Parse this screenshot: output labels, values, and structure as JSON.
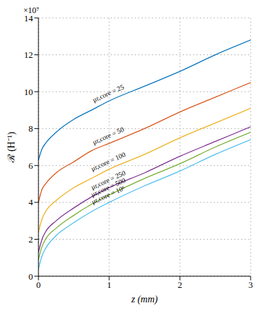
{
  "chart_data": {
    "type": "line",
    "x_label": "z (mm)",
    "y_label": "ℛ (H⁻¹)",
    "annotations": [
      "×10⁷"
    ],
    "x": [
      0,
      0.05,
      0.1,
      0.25,
      0.5,
      0.75,
      1,
      1.5,
      2,
      2.5,
      3
    ],
    "series": [
      {
        "name": "μr,core = 25",
        "color": "#0072BD",
        "values": [
          6.3,
          6.9,
          7.2,
          7.8,
          8.5,
          9.0,
          9.5,
          10.3,
          11.1,
          12.0,
          12.8
        ]
      },
      {
        "name": "μr,core = 50",
        "color": "#D95319",
        "values": [
          4.0,
          4.7,
          5.0,
          5.6,
          6.2,
          6.8,
          7.2,
          8.0,
          8.9,
          9.7,
          10.5
        ]
      },
      {
        "name": "μr,core = 100",
        "color": "#EDB120",
        "values": [
          2.4,
          3.1,
          3.5,
          4.1,
          4.8,
          5.3,
          5.8,
          6.6,
          7.5,
          8.3,
          9.1
        ]
      },
      {
        "name": "μr,core = 250",
        "color": "#7E2F8E",
        "values": [
          1.3,
          2.0,
          2.4,
          3.0,
          3.7,
          4.3,
          4.8,
          5.6,
          6.5,
          7.3,
          8.1
        ]
      },
      {
        "name": "μr,core = 500",
        "color": "#77AC30",
        "values": [
          0.9,
          1.6,
          2.0,
          2.6,
          3.3,
          3.9,
          4.4,
          5.3,
          6.1,
          7.0,
          7.8
        ]
      },
      {
        "name": "μr,core = 10⁶",
        "color": "#4DBEEE",
        "values": [
          0.4,
          1.1,
          1.5,
          2.2,
          2.9,
          3.5,
          4.0,
          4.9,
          5.7,
          6.6,
          7.4
        ]
      }
    ],
    "xlim": [
      0,
      3
    ],
    "ylim": [
      0,
      14
    ],
    "xticks": [
      0,
      1,
      2,
      3
    ],
    "yticks": [
      0,
      2,
      4,
      6,
      8,
      10,
      12,
      14
    ],
    "grid": true
  }
}
